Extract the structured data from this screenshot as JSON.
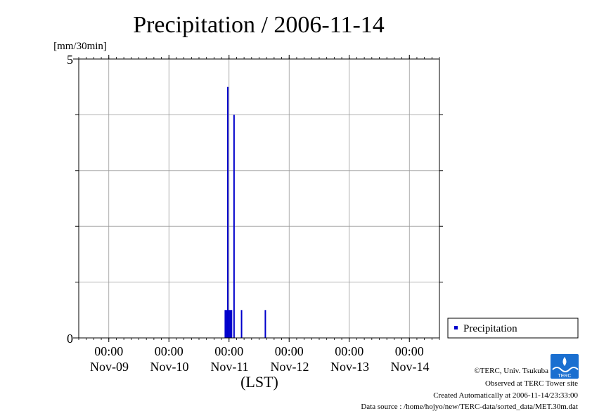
{
  "chart_data": {
    "type": "bar",
    "title": "Precipitation / 2006-11-14",
    "ylabel": "[mm/30min]",
    "xlabel": "(LST)",
    "ylim": [
      0,
      5
    ],
    "xlim": [
      "2006-11-08T12:00",
      "2006-11-14T12:00"
    ],
    "y_tick_labels": [
      "0",
      "5"
    ],
    "x_ticks": [
      {
        "time": "00:00",
        "date": "Nov-09",
        "at": "2006-11-09T00:00"
      },
      {
        "time": "00:00",
        "date": "Nov-10",
        "at": "2006-11-10T00:00"
      },
      {
        "time": "00:00",
        "date": "Nov-11",
        "at": "2006-11-11T00:00"
      },
      {
        "time": "00:00",
        "date": "Nov-12",
        "at": "2006-11-12T00:00"
      },
      {
        "time": "00:00",
        "date": "Nov-13",
        "at": "2006-11-13T00:00"
      },
      {
        "time": "00:00",
        "date": "Nov-14",
        "at": "2006-11-14T00:00"
      }
    ],
    "grid": true,
    "legend_position": "right-bottom",
    "series": [
      {
        "name": "Precipitation",
        "color": "#0000cc",
        "points": [
          {
            "t": "2006-11-10T22:30",
            "v": 0.5
          },
          {
            "t": "2006-11-10T23:00",
            "v": 0.5
          },
          {
            "t": "2006-11-10T23:30",
            "v": 4.5
          },
          {
            "t": "2006-11-11T00:00",
            "v": 0.5
          },
          {
            "t": "2006-11-11T00:30",
            "v": 0.5
          },
          {
            "t": "2006-11-11T01:00",
            "v": 0.5
          },
          {
            "t": "2006-11-11T02:00",
            "v": 4.0
          },
          {
            "t": "2006-11-11T05:00",
            "v": 0.5
          },
          {
            "t": "2006-11-11T14:30",
            "v": 0.5
          }
        ]
      }
    ]
  },
  "footer": {
    "copyright": "©TERC, Univ. Tsukuba",
    "observed": "Observed at TERC Tower site",
    "created": "Created Automatically at 2006-11-14/23:33:00",
    "source": "Data source : /home/hojyo/new/TERC-data/sorted_data/MET.30m.dat",
    "logo_text": "TERC"
  }
}
